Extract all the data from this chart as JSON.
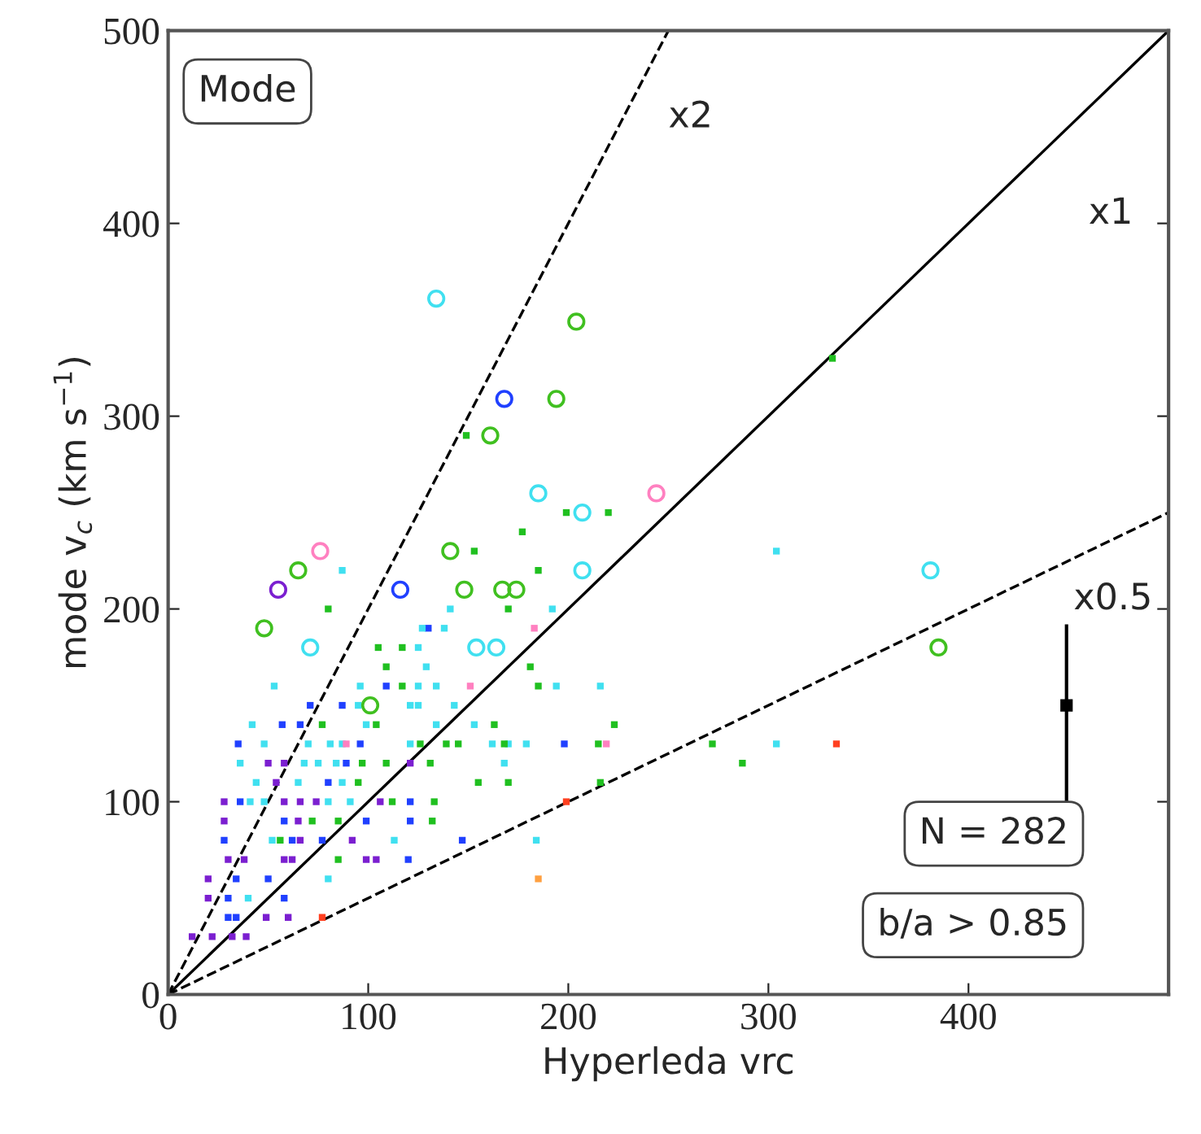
{
  "chart_data": {
    "type": "scatter",
    "xlabel": "Hyperleda vrc",
    "ylabel": "mode v$_{c}$ (km s$^{−1}$)",
    "xlim": [
      0,
      500
    ],
    "ylim": [
      0,
      500
    ],
    "xticks": [
      0,
      100,
      200,
      300,
      400
    ],
    "yticks": [
      0,
      100,
      200,
      300,
      400,
      500
    ],
    "grid": false,
    "legend": false,
    "annotations": [
      "Mode",
      "N = 282",
      "b/a > 0.85",
      "x2",
      "x1",
      "x0.5"
    ],
    "series": [
      {
        "type": "line",
        "color": "#000000",
        "line_style": "dashed",
        "marker": "none",
        "x": [
          0,
          250
        ],
        "values": [
          0,
          500
        ]
      },
      {
        "type": "line",
        "color": "#000000",
        "line_style": "solid",
        "marker": "none",
        "x": [
          0,
          500
        ],
        "values": [
          0,
          500
        ]
      },
      {
        "type": "line",
        "color": "#000000",
        "line_style": "dashed",
        "marker": "none",
        "x": [
          0,
          500
        ],
        "values": [
          0,
          250
        ]
      },
      {
        "color": "#7b1fd0",
        "marker": "square",
        "x": [
          50,
          58,
          121,
          54,
          28,
          58,
          66,
          74,
          106,
          28,
          65,
          66,
          92,
          30,
          38,
          58,
          62,
          99,
          104,
          20,
          20,
          49,
          60,
          12,
          22,
          32,
          39
        ],
        "values": [
          120,
          120,
          120,
          110,
          100,
          100,
          100,
          100,
          100,
          90,
          90,
          80,
          80,
          70,
          70,
          70,
          70,
          70,
          70,
          60,
          50,
          40,
          40,
          30,
          30,
          30,
          30
        ]
      },
      {
        "color": "#2040ff",
        "marker": "square",
        "x": [
          130,
          109,
          71,
          87,
          57,
          66,
          35,
          96,
          198,
          89,
          80,
          36,
          121,
          58,
          99,
          121,
          28,
          62,
          77,
          147,
          120,
          34,
          50,
          30,
          58,
          30,
          34
        ],
        "values": [
          190,
          160,
          150,
          150,
          140,
          140,
          130,
          130,
          130,
          120,
          110,
          100,
          100,
          90,
          90,
          90,
          80,
          80,
          80,
          80,
          70,
          60,
          60,
          50,
          50,
          40,
          40
        ]
      },
      {
        "color": "#40e0f0",
        "marker": "square",
        "x": [
          138,
          127,
          125,
          129,
          53,
          96,
          125,
          134,
          194,
          216,
          95,
          121,
          125,
          143,
          42,
          99,
          134,
          153,
          48,
          70,
          81,
          87,
          121,
          162,
          170,
          179,
          304,
          36,
          68,
          75,
          84,
          168,
          44,
          65,
          87,
          41,
          48,
          80,
          91,
          52,
          113,
          184,
          80,
          40,
          87,
          141,
          192,
          304
        ],
        "values": [
          190,
          190,
          180,
          170,
          160,
          160,
          160,
          160,
          160,
          160,
          150,
          150,
          150,
          150,
          140,
          140,
          140,
          140,
          130,
          130,
          130,
          130,
          130,
          130,
          130,
          130,
          130,
          120,
          120,
          120,
          120,
          120,
          110,
          110,
          110,
          100,
          100,
          100,
          100,
          80,
          80,
          80,
          60,
          50,
          220,
          200,
          200,
          230
        ]
      },
      {
        "color": "#20c020",
        "marker": "square",
        "x": [
          105,
          117,
          109,
          181,
          117,
          185,
          77,
          104,
          163,
          223,
          126,
          139,
          145,
          168,
          215,
          272,
          97,
          109,
          131,
          287,
          95,
          155,
          170,
          216,
          112,
          133,
          72,
          85,
          132,
          56,
          85,
          149,
          177,
          153,
          185,
          80,
          170,
          199,
          220,
          332
        ],
        "values": [
          180,
          180,
          170,
          170,
          160,
          160,
          140,
          140,
          140,
          140,
          130,
          130,
          130,
          130,
          130,
          130,
          120,
          120,
          120,
          120,
          110,
          110,
          110,
          110,
          100,
          100,
          90,
          90,
          90,
          80,
          70,
          290,
          240,
          230,
          220,
          200,
          200,
          250,
          250,
          330
        ]
      },
      {
        "color": "#ff80c0",
        "marker": "square",
        "x": [
          151,
          89,
          219,
          183
        ],
        "values": [
          160,
          130,
          130,
          190
        ]
      },
      {
        "color": "#ff4020",
        "marker": "square",
        "x": [
          334,
          77,
          199
        ],
        "values": [
          130,
          40,
          100
        ]
      },
      {
        "color": "#ffa040",
        "marker": "square",
        "x": [
          185
        ],
        "values": [
          60
        ]
      },
      {
        "color": "#40e0f0",
        "marker": "circle",
        "x": [
          134,
          185,
          207,
          207,
          71,
          154,
          164,
          381
        ],
        "values": [
          361,
          260,
          250,
          220,
          180,
          180,
          180,
          220
        ]
      },
      {
        "color": "#40c020",
        "marker": "circle",
        "x": [
          204,
          194,
          161,
          65,
          148,
          167,
          174,
          48,
          385,
          101,
          141
        ],
        "values": [
          349,
          309,
          290,
          220,
          210,
          210,
          210,
          190,
          180,
          150,
          230
        ]
      },
      {
        "color": "#2040ff",
        "marker": "circle",
        "x": [
          168,
          116
        ],
        "values": [
          309,
          210
        ]
      },
      {
        "color": "#7b1fd0",
        "marker": "circle",
        "x": [
          55
        ],
        "values": [
          210
        ]
      },
      {
        "color": "#ff80c0",
        "marker": "circle",
        "x": [
          244,
          76
        ],
        "values": [
          260,
          230
        ]
      },
      {
        "color": "#000000",
        "marker": "square",
        "x": [
          449
        ],
        "values": [
          150
        ],
        "errors": [
          [
            100,
            192
          ]
        ]
      }
    ]
  }
}
